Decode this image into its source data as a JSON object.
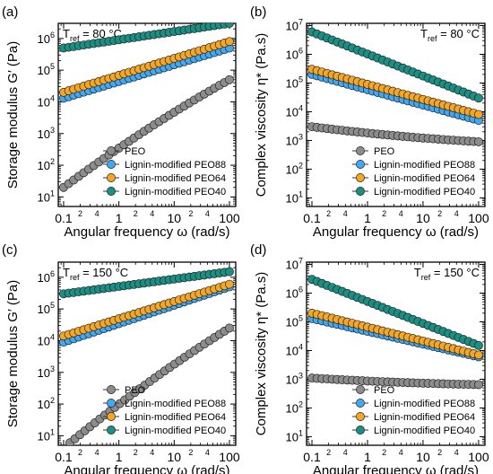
{
  "colors": {
    "PEO": "#8c8c8c",
    "PEO88": "#3fa9f5",
    "PEO64": "#f5a623",
    "PEO40": "#1a8f84",
    "outline": "#222222"
  },
  "chart_data": [
    {
      "panel_label": "(a)",
      "type": "scatter",
      "xlabel": "Angular frequency ω (rad/s)",
      "ylabel": "Storage modulus G′ (Pa)",
      "x_scale": "log",
      "y_scale": "log",
      "xlim": [
        0.08,
        130
      ],
      "ylim": [
        5,
        3000000
      ],
      "x_major_ticks": [
        {
          "v": 0.1,
          "label": "0.1"
        },
        {
          "v": 1,
          "label": "1"
        },
        {
          "v": 10,
          "label": "10"
        },
        {
          "v": 100,
          "label": "100"
        }
      ],
      "x_minor_labels": [
        {
          "v": 0.2,
          "label": "2"
        },
        {
          "v": 0.4,
          "label": "4"
        },
        {
          "v": 2,
          "label": "2"
        },
        {
          "v": 4,
          "label": "4"
        },
        {
          "v": 20,
          "label": "2"
        },
        {
          "v": 40,
          "label": "4"
        }
      ],
      "y_ticks": [
        {
          "v": 10,
          "label": "10",
          "sup": "1"
        },
        {
          "v": 100,
          "label": "10",
          "sup": "2"
        },
        {
          "v": 1000,
          "label": "10",
          "sup": "3"
        },
        {
          "v": 10000,
          "label": "10",
          "sup": "4"
        },
        {
          "v": 100000,
          "label": "10",
          "sup": "5"
        },
        {
          "v": 1000000,
          "label": "10",
          "sup": "6"
        }
      ],
      "annotation": {
        "main": "T",
        "sub": "ref",
        "rest": " = 80 °C",
        "position": "top-left"
      },
      "legend": {
        "position": "bottom-right",
        "entries": [
          "PEO",
          "Lignin-modified PEO88",
          "Lignin-modified PEO64",
          "Lignin-modified PEO40"
        ]
      },
      "series": [
        {
          "name": "PEO",
          "key": "PEO",
          "x_range": [
            0.1,
            100
          ],
          "y_start": 20,
          "y_end": 50000,
          "curv": 0.12
        },
        {
          "name": "Lignin-modified PEO88",
          "key": "PEO88",
          "x_range": [
            0.1,
            100
          ],
          "y_start": 13000,
          "y_end": 500000,
          "curv": 0
        },
        {
          "name": "Lignin-modified PEO64",
          "key": "PEO64",
          "x_range": [
            0.1,
            100
          ],
          "y_start": 20000,
          "y_end": 800000,
          "curv": 0
        },
        {
          "name": "Lignin-modified PEO40",
          "key": "PEO40",
          "x_range": [
            0.1,
            100
          ],
          "y_start": 500000,
          "y_end": 3000000,
          "curv": 0
        }
      ]
    },
    {
      "panel_label": "(b)",
      "type": "scatter",
      "xlabel": "Angular frequency ω (rad/s)",
      "ylabel": "Complex viscosity η* (Pa.s)",
      "x_scale": "log",
      "y_scale": "log",
      "xlim": [
        0.08,
        130
      ],
      "ylim": [
        5,
        12000000
      ],
      "x_major_ticks": [
        {
          "v": 0.1,
          "label": "0.1"
        },
        {
          "v": 1,
          "label": "1"
        },
        {
          "v": 10,
          "label": "10"
        },
        {
          "v": 100,
          "label": "100"
        }
      ],
      "x_minor_labels": [
        {
          "v": 0.2,
          "label": "2"
        },
        {
          "v": 0.4,
          "label": "4"
        },
        {
          "v": 2,
          "label": "2"
        },
        {
          "v": 4,
          "label": "4"
        },
        {
          "v": 20,
          "label": "2"
        },
        {
          "v": 40,
          "label": "4"
        }
      ],
      "y_ticks": [
        {
          "v": 10,
          "label": "10",
          "sup": "1"
        },
        {
          "v": 100,
          "label": "10",
          "sup": "2"
        },
        {
          "v": 1000,
          "label": "10",
          "sup": "3"
        },
        {
          "v": 10000,
          "label": "10",
          "sup": "4"
        },
        {
          "v": 100000,
          "label": "10",
          "sup": "5"
        },
        {
          "v": 1000000,
          "label": "10",
          "sup": "6"
        },
        {
          "v": 10000000,
          "label": "10",
          "sup": "7"
        }
      ],
      "annotation": {
        "main": "T",
        "sub": "ref",
        "rest": " = 80 °C",
        "position": "top-right"
      },
      "legend": {
        "position": "bottom-right",
        "entries": [
          "PEO",
          "Lignin-modified PEO88",
          "Lignin-modified PEO64",
          "Lignin-modified PEO40"
        ]
      },
      "series": [
        {
          "name": "PEO",
          "key": "PEO",
          "x_range": [
            0.1,
            100
          ],
          "y_start": 3000,
          "y_end": 900,
          "curv": -0.05
        },
        {
          "name": "Lignin-modified PEO88",
          "key": "PEO88",
          "x_range": [
            0.1,
            100
          ],
          "y_start": 200000,
          "y_end": 5000,
          "curv": 0
        },
        {
          "name": "Lignin-modified PEO64",
          "key": "PEO64",
          "x_range": [
            0.1,
            100
          ],
          "y_start": 300000,
          "y_end": 8000,
          "curv": 0
        },
        {
          "name": "Lignin-modified PEO40",
          "key": "PEO40",
          "x_range": [
            0.1,
            100
          ],
          "y_start": 6000000,
          "y_end": 30000,
          "curv": 0
        }
      ]
    },
    {
      "panel_label": "(c)",
      "type": "scatter",
      "xlabel": "Angular frequency ω (rad/s)",
      "ylabel": "Storage modulus G′ (Pa)",
      "x_scale": "log",
      "y_scale": "log",
      "xlim": [
        0.08,
        130
      ],
      "ylim": [
        5,
        3000000
      ],
      "x_major_ticks": [
        {
          "v": 0.1,
          "label": "0.1"
        },
        {
          "v": 1,
          "label": "1"
        },
        {
          "v": 10,
          "label": "10"
        },
        {
          "v": 100,
          "label": "100"
        }
      ],
      "x_minor_labels": [
        {
          "v": 0.2,
          "label": "2"
        },
        {
          "v": 0.4,
          "label": "4"
        },
        {
          "v": 2,
          "label": "2"
        },
        {
          "v": 4,
          "label": "4"
        },
        {
          "v": 20,
          "label": "2"
        },
        {
          "v": 40,
          "label": "4"
        }
      ],
      "y_ticks": [
        {
          "v": 10,
          "label": "10",
          "sup": "1"
        },
        {
          "v": 100,
          "label": "10",
          "sup": "2"
        },
        {
          "v": 1000,
          "label": "10",
          "sup": "3"
        },
        {
          "v": 10000,
          "label": "10",
          "sup": "4"
        },
        {
          "v": 100000,
          "label": "10",
          "sup": "5"
        },
        {
          "v": 1000000,
          "label": "10",
          "sup": "6"
        }
      ],
      "annotation": {
        "main": "T",
        "sub": "ref",
        "rest": " = 150 °C",
        "position": "top-left"
      },
      "legend": {
        "position": "bottom-right",
        "entries": [
          "PEO",
          "Lignin-modified PEO88",
          "Lignin-modified PEO64",
          "Lignin-modified PEO40"
        ]
      },
      "series": [
        {
          "name": "PEO",
          "key": "PEO",
          "x_range": [
            0.13,
            100
          ],
          "y_start": 6,
          "y_end": 25000,
          "curv": 0.12
        },
        {
          "name": "Lignin-modified PEO88",
          "key": "PEO88",
          "x_range": [
            0.1,
            100
          ],
          "y_start": 9000,
          "y_end": 500000,
          "curv": 0
        },
        {
          "name": "Lignin-modified PEO64",
          "key": "PEO64",
          "x_range": [
            0.1,
            100
          ],
          "y_start": 14000,
          "y_end": 600000,
          "curv": 0
        },
        {
          "name": "Lignin-modified PEO40",
          "key": "PEO40",
          "x_range": [
            0.1,
            100
          ],
          "y_start": 300000,
          "y_end": 1500000,
          "curv": 0
        }
      ]
    },
    {
      "panel_label": "(d)",
      "type": "scatter",
      "xlabel": "Angular frequency ω (rad/s)",
      "ylabel": "Complex viscosity η* (Pa.s)",
      "x_scale": "log",
      "y_scale": "log",
      "xlim": [
        0.08,
        130
      ],
      "ylim": [
        5,
        12000000
      ],
      "x_major_ticks": [
        {
          "v": 0.1,
          "label": "0.1"
        },
        {
          "v": 1,
          "label": "1"
        },
        {
          "v": 10,
          "label": "10"
        },
        {
          "v": 100,
          "label": "100"
        }
      ],
      "x_minor_labels": [
        {
          "v": 0.2,
          "label": "2"
        },
        {
          "v": 0.4,
          "label": "4"
        },
        {
          "v": 2,
          "label": "2"
        },
        {
          "v": 4,
          "label": "4"
        },
        {
          "v": 20,
          "label": "2"
        },
        {
          "v": 40,
          "label": "4"
        }
      ],
      "y_ticks": [
        {
          "v": 10,
          "label": "10",
          "sup": "1"
        },
        {
          "v": 100,
          "label": "10",
          "sup": "2"
        },
        {
          "v": 1000,
          "label": "10",
          "sup": "3"
        },
        {
          "v": 10000,
          "label": "10",
          "sup": "4"
        },
        {
          "v": 100000,
          "label": "10",
          "sup": "5"
        },
        {
          "v": 1000000,
          "label": "10",
          "sup": "6"
        },
        {
          "v": 10000000,
          "label": "10",
          "sup": "7"
        }
      ],
      "annotation": {
        "main": "T",
        "sub": "ref",
        "rest": " = 150 °C",
        "position": "top-right"
      },
      "legend": {
        "position": "bottom-right",
        "entries": [
          "PEO",
          "Lignin-modified PEO88",
          "Lignin-modified PEO64",
          "Lignin-modified PEO40"
        ]
      },
      "series": [
        {
          "name": "PEO",
          "key": "PEO",
          "x_range": [
            0.1,
            100
          ],
          "y_start": 1100,
          "y_end": 650,
          "curv": -0.03
        },
        {
          "name": "Lignin-modified PEO88",
          "key": "PEO88",
          "x_range": [
            0.1,
            100
          ],
          "y_start": 130000,
          "y_end": 6000,
          "curv": 0
        },
        {
          "name": "Lignin-modified PEO64",
          "key": "PEO64",
          "x_range": [
            0.1,
            100
          ],
          "y_start": 200000,
          "y_end": 7000,
          "curv": 0
        },
        {
          "name": "Lignin-modified PEO40",
          "key": "PEO40",
          "x_range": [
            0.1,
            100
          ],
          "y_start": 3000000,
          "y_end": 15000,
          "curv": 0
        }
      ]
    }
  ]
}
